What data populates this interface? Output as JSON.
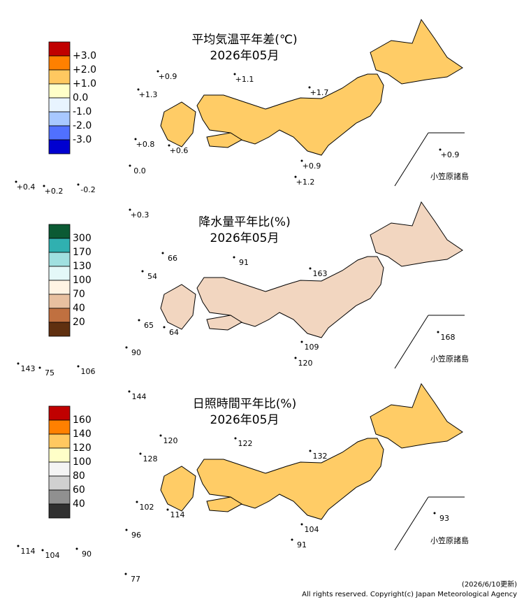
{
  "panels": [
    {
      "title": "平均気温平年差(℃)",
      "subtitle": "2026年05月",
      "legend_colors": [
        "#c00000",
        "#ff8000",
        "#ffc860",
        "#ffffc8",
        "#e8f4ff",
        "#a8c8ff",
        "#5070ff",
        "#0000d0"
      ],
      "legend_labels": [
        "+3.0",
        "+2.0",
        "+1.0",
        "0.0",
        "-1.0",
        "-2.0",
        "-3.0"
      ],
      "map_color": "#ffcc66",
      "stations": [
        "+0.9",
        "+1.1",
        "+1.3",
        "+1.7",
        "+0.8",
        "+0.6",
        "+0.9",
        "+1.2",
        "+0.4",
        "+0.2",
        "-0.2",
        "0.0",
        "+0.3",
        "+0.9"
      ],
      "bonin_label": "小笠原諸島"
    },
    {
      "title": "降水量平年比(%)",
      "subtitle": "2026年05月",
      "legend_colors": [
        "#0b5a34",
        "#30b0b0",
        "#a0e0e0",
        "#e4f8f8",
        "#fff4e4",
        "#e8c0a0",
        "#c07040",
        "#603010"
      ],
      "legend_labels": [
        "300",
        "170",
        "130",
        "100",
        "70",
        "40",
        "20"
      ],
      "map_color": "#f2d6c0",
      "stations": [
        "66",
        "91",
        "54",
        "163",
        "65",
        "64",
        "90",
        "143",
        "75",
        "106",
        "109",
        "120",
        "168",
        "144"
      ],
      "bonin_label": "小笠原諸島"
    },
    {
      "title": "日照時間平年比(%)",
      "subtitle": "2026年05月",
      "legend_colors": [
        "#c00000",
        "#ff8000",
        "#ffc860",
        "#ffffc8",
        "#f4f4f4",
        "#d0d0d0",
        "#909090",
        "#303030"
      ],
      "legend_labels": [
        "160",
        "140",
        "120",
        "100",
        "80",
        "60",
        "40"
      ],
      "map_color": "#ffcc66",
      "stations": [
        "120",
        "122",
        "128",
        "132",
        "102",
        "114",
        "96",
        "104",
        "91",
        "93",
        "114",
        "104",
        "90",
        "77"
      ],
      "bonin_label": "小笠原諸島"
    }
  ],
  "footer": {
    "updated": "(2026/6/10更新)",
    "copyright": "All rights reserved. Copyright(c) Japan Meteorological Agency"
  }
}
